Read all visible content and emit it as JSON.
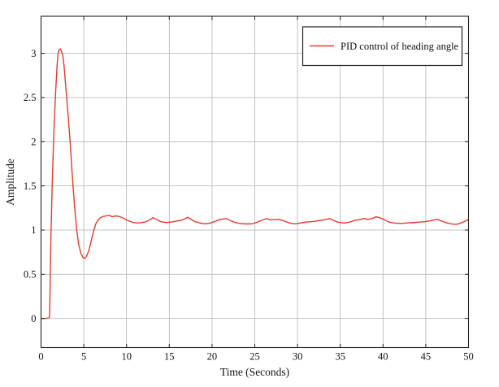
{
  "figure": {
    "background": "#ffffff"
  },
  "colors": {
    "curve": "#e53a2e",
    "grid": "#b3b3b3",
    "axis": "#1f1f1f",
    "legend_border": "#1f1f1f",
    "legend_fill": "#ffffff",
    "text": "#111111"
  },
  "chart_data": {
    "type": "line",
    "title": "",
    "xlabel": "Time (Seconds)",
    "ylabel": "Amplitude",
    "xlim": [
      0,
      50
    ],
    "ylim": [
      -0.33,
      3.42
    ],
    "xticks": [
      0,
      5,
      10,
      15,
      20,
      25,
      30,
      35,
      40,
      45,
      50
    ],
    "yticks": [
      0,
      0.5,
      1,
      1.5,
      2,
      2.5,
      3
    ],
    "grid": true,
    "legend": {
      "position": "top-right",
      "entries": [
        {
          "label": "PID control of heading angle",
          "color": "#e53a2e"
        }
      ]
    },
    "series": [
      {
        "name": "PID control of heading angle",
        "color": "#e53a2e",
        "points": [
          [
            0,
            0
          ],
          [
            0.6,
            0
          ],
          [
            0.95,
            0.01
          ],
          [
            1.0,
            0.04
          ],
          [
            1.05,
            0.3
          ],
          [
            1.15,
            0.9
          ],
          [
            1.3,
            1.5
          ],
          [
            1.5,
            2.1
          ],
          [
            1.7,
            2.55
          ],
          [
            1.9,
            2.9
          ],
          [
            2.0,
            3.0
          ],
          [
            2.1,
            3.04
          ],
          [
            2.25,
            3.05
          ],
          [
            2.4,
            3.02
          ],
          [
            2.55,
            2.97
          ],
          [
            2.7,
            2.85
          ],
          [
            2.85,
            2.67
          ],
          [
            3.0,
            2.5
          ],
          [
            3.2,
            2.26
          ],
          [
            3.4,
            2.0
          ],
          [
            3.6,
            1.7
          ],
          [
            3.8,
            1.42
          ],
          [
            4.0,
            1.18
          ],
          [
            4.2,
            0.98
          ],
          [
            4.4,
            0.84
          ],
          [
            4.65,
            0.74
          ],
          [
            4.9,
            0.69
          ],
          [
            5.1,
            0.68
          ],
          [
            5.3,
            0.7
          ],
          [
            5.6,
            0.77
          ],
          [
            5.9,
            0.89
          ],
          [
            6.15,
            0.99
          ],
          [
            6.4,
            1.07
          ],
          [
            6.65,
            1.11
          ],
          [
            6.95,
            1.14
          ],
          [
            7.3,
            1.155
          ],
          [
            7.6,
            1.16
          ],
          [
            8.0,
            1.165
          ],
          [
            8.3,
            1.15
          ],
          [
            8.7,
            1.16
          ],
          [
            9.1,
            1.155
          ],
          [
            9.5,
            1.14
          ],
          [
            10.0,
            1.115
          ],
          [
            10.4,
            1.1
          ],
          [
            10.8,
            1.085
          ],
          [
            11.3,
            1.08
          ],
          [
            11.8,
            1.085
          ],
          [
            12.3,
            1.095
          ],
          [
            12.8,
            1.12
          ],
          [
            13.1,
            1.14
          ],
          [
            13.5,
            1.12
          ],
          [
            14.0,
            1.095
          ],
          [
            14.6,
            1.085
          ],
          [
            15.2,
            1.09
          ],
          [
            15.8,
            1.1
          ],
          [
            16.3,
            1.11
          ],
          [
            16.8,
            1.125
          ],
          [
            17.15,
            1.145
          ],
          [
            17.5,
            1.125
          ],
          [
            18.0,
            1.095
          ],
          [
            18.6,
            1.08
          ],
          [
            19.2,
            1.07
          ],
          [
            19.8,
            1.08
          ],
          [
            20.4,
            1.1
          ],
          [
            20.9,
            1.12
          ],
          [
            21.3,
            1.125
          ],
          [
            21.7,
            1.13
          ],
          [
            22.2,
            1.105
          ],
          [
            22.7,
            1.085
          ],
          [
            23.3,
            1.075
          ],
          [
            23.9,
            1.07
          ],
          [
            24.6,
            1.07
          ],
          [
            25.2,
            1.085
          ],
          [
            25.8,
            1.11
          ],
          [
            26.4,
            1.13
          ],
          [
            26.9,
            1.115
          ],
          [
            27.4,
            1.12
          ],
          [
            27.9,
            1.12
          ],
          [
            28.5,
            1.1
          ],
          [
            29.1,
            1.08
          ],
          [
            29.7,
            1.07
          ],
          [
            30.3,
            1.08
          ],
          [
            30.9,
            1.09
          ],
          [
            31.5,
            1.095
          ],
          [
            32.1,
            1.1
          ],
          [
            32.7,
            1.11
          ],
          [
            33.3,
            1.12
          ],
          [
            33.8,
            1.13
          ],
          [
            34.3,
            1.105
          ],
          [
            34.9,
            1.085
          ],
          [
            35.5,
            1.08
          ],
          [
            36.1,
            1.09
          ],
          [
            36.7,
            1.11
          ],
          [
            37.3,
            1.12
          ],
          [
            37.8,
            1.13
          ],
          [
            38.2,
            1.12
          ],
          [
            38.7,
            1.13
          ],
          [
            39.2,
            1.15
          ],
          [
            39.6,
            1.14
          ],
          [
            40.1,
            1.12
          ],
          [
            40.7,
            1.09
          ],
          [
            41.3,
            1.08
          ],
          [
            42.0,
            1.075
          ],
          [
            42.7,
            1.08
          ],
          [
            43.5,
            1.085
          ],
          [
            44.2,
            1.09
          ],
          [
            44.9,
            1.095
          ],
          [
            45.5,
            1.105
          ],
          [
            46.0,
            1.115
          ],
          [
            46.4,
            1.12
          ],
          [
            46.9,
            1.1
          ],
          [
            47.5,
            1.08
          ],
          [
            48.1,
            1.068
          ],
          [
            48.6,
            1.065
          ],
          [
            49.1,
            1.08
          ],
          [
            49.6,
            1.1
          ],
          [
            50,
            1.12
          ]
        ]
      }
    ]
  }
}
